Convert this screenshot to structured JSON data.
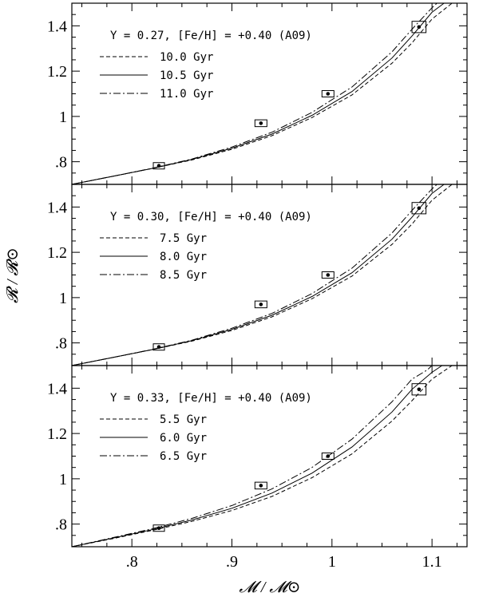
{
  "chart_data": {
    "type": "line",
    "xlabel": "𝓜 / 𝓜⊙",
    "ylabel": "𝓡 / 𝓡⊙",
    "xlim": [
      0.74,
      1.135
    ],
    "x_ticks": [
      0.8,
      0.9,
      1.0,
      1.1
    ],
    "x_tick_labels": [
      ".8",
      ".9",
      "1",
      "1.1"
    ],
    "y_ticks": [
      0.8,
      1.0,
      1.2,
      1.4
    ],
    "y_tick_labels": [
      ".8",
      "1",
      "1.2",
      "1.4"
    ],
    "grid": false,
    "legend_position": "top-left",
    "observations": [
      {
        "x": 0.827,
        "y": 0.782,
        "xerr": 0.004,
        "yerr": 0.008
      },
      {
        "x": 0.929,
        "y": 0.97,
        "xerr": 0.006,
        "yerr": 0.015
      },
      {
        "x": 0.996,
        "y": 1.1,
        "xerr": 0.006,
        "yerr": 0.012
      },
      {
        "x": 1.087,
        "y": 1.395,
        "xerr": 0.007,
        "yerr": 0.025
      }
    ],
    "panels": [
      {
        "title": "Y = 0.27, [Fe/H] = +0.40 (A09)",
        "ylim": [
          0.7,
          1.5
        ],
        "series": [
          {
            "name": "10.0 Gyr",
            "style": "dashed",
            "x": [
              0.74,
              0.78,
              0.82,
              0.86,
              0.9,
              0.94,
              0.98,
              1.02,
              1.06,
              1.08,
              1.1,
              1.12
            ],
            "y": [
              0.7,
              0.735,
              0.77,
              0.808,
              0.855,
              0.915,
              0.995,
              1.095,
              1.235,
              1.325,
              1.43,
              1.5
            ]
          },
          {
            "name": "10.5 Gyr",
            "style": "solid",
            "x": [
              0.74,
              0.78,
              0.82,
              0.86,
              0.9,
              0.94,
              0.98,
              1.02,
              1.06,
              1.08,
              1.1,
              1.112
            ],
            "y": [
              0.7,
              0.735,
              0.77,
              0.81,
              0.86,
              0.922,
              1.005,
              1.11,
              1.258,
              1.355,
              1.46,
              1.5
            ]
          },
          {
            "name": "11.0 Gyr",
            "style": "dashdot",
            "x": [
              0.74,
              0.78,
              0.82,
              0.86,
              0.9,
              0.94,
              0.98,
              1.02,
              1.06,
              1.08,
              1.1,
              1.105
            ],
            "y": [
              0.7,
              0.735,
              0.771,
              0.812,
              0.865,
              0.93,
              1.018,
              1.13,
              1.285,
              1.385,
              1.48,
              1.5
            ]
          }
        ]
      },
      {
        "title": "Y = 0.30, [Fe/H] = +0.40 (A09)",
        "ylim": [
          0.7,
          1.5
        ],
        "series": [
          {
            "name": "7.5 Gyr",
            "style": "dashed",
            "x": [
              0.74,
              0.78,
              0.82,
              0.86,
              0.9,
              0.94,
              0.98,
              1.02,
              1.06,
              1.08,
              1.1,
              1.12
            ],
            "y": [
              0.7,
              0.735,
              0.77,
              0.808,
              0.855,
              0.915,
              0.995,
              1.095,
              1.235,
              1.325,
              1.43,
              1.5
            ]
          },
          {
            "name": "8.0 Gyr",
            "style": "solid",
            "x": [
              0.74,
              0.78,
              0.82,
              0.86,
              0.9,
              0.94,
              0.98,
              1.02,
              1.06,
              1.08,
              1.1,
              1.112
            ],
            "y": [
              0.7,
              0.735,
              0.77,
              0.81,
              0.86,
              0.922,
              1.005,
              1.11,
              1.258,
              1.355,
              1.46,
              1.5
            ]
          },
          {
            "name": "8.5 Gyr",
            "style": "dashdot",
            "x": [
              0.74,
              0.78,
              0.82,
              0.86,
              0.9,
              0.94,
              0.98,
              1.02,
              1.06,
              1.08,
              1.1,
              1.105
            ],
            "y": [
              0.7,
              0.735,
              0.771,
              0.812,
              0.865,
              0.93,
              1.018,
              1.13,
              1.285,
              1.385,
              1.48,
              1.5
            ]
          }
        ]
      },
      {
        "title": "Y = 0.33, [Fe/H] = +0.40 (A09)",
        "ylim": [
          0.7,
          1.5
        ],
        "series": [
          {
            "name": "5.5 Gyr",
            "style": "dashed",
            "x": [
              0.74,
              0.78,
              0.82,
              0.86,
              0.9,
              0.94,
              0.98,
              1.02,
              1.06,
              1.08,
              1.1,
              1.12
            ],
            "y": [
              0.7,
              0.735,
              0.772,
              0.812,
              0.86,
              0.922,
              1.005,
              1.11,
              1.255,
              1.345,
              1.44,
              1.5
            ]
          },
          {
            "name": "6.0 Gyr",
            "style": "solid",
            "x": [
              0.74,
              0.78,
              0.82,
              0.86,
              0.9,
              0.94,
              0.98,
              1.02,
              1.06,
              1.08,
              1.1,
              1.11
            ],
            "y": [
              0.7,
              0.737,
              0.775,
              0.818,
              0.87,
              0.937,
              1.025,
              1.14,
              1.295,
              1.395,
              1.47,
              1.5
            ]
          },
          {
            "name": "6.5 Gyr",
            "style": "dashdot",
            "x": [
              0.74,
              0.78,
              0.82,
              0.86,
              0.9,
              0.94,
              0.98,
              1.02,
              1.06,
              1.08,
              1.095,
              1.1
            ],
            "y": [
              0.7,
              0.739,
              0.779,
              0.825,
              0.882,
              0.955,
              1.05,
              1.175,
              1.34,
              1.44,
              1.48,
              1.5
            ]
          }
        ]
      }
    ]
  }
}
